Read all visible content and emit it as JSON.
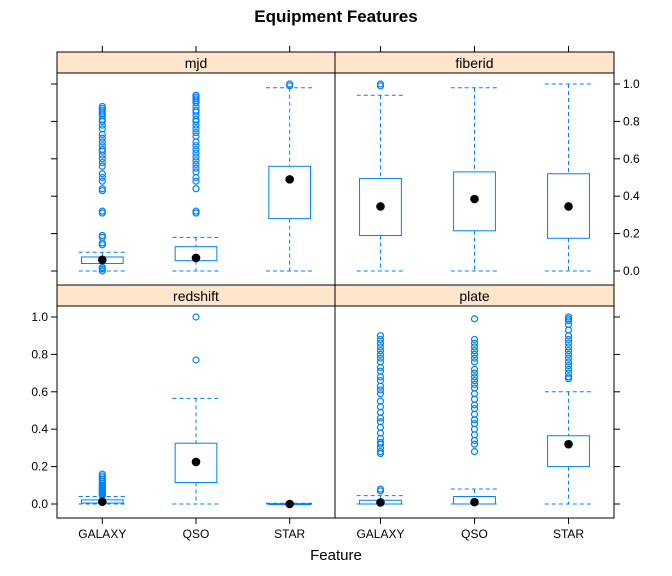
{
  "chart_data": {
    "type": "boxplot",
    "title": "Equipment Features",
    "xlabel": "Feature",
    "categories": [
      "GALAXY",
      "QSO",
      "STAR"
    ],
    "ylim": [
      0,
      1
    ],
    "yticks": [
      "0.0",
      "0.2",
      "0.4",
      "0.6",
      "0.8",
      "1.0"
    ],
    "yticks_values": [
      0,
      0.2,
      0.4,
      0.6,
      0.8,
      1.0
    ],
    "colors": {
      "box": "#0080ff",
      "median": "#000000",
      "strip": "#ffe5cc"
    },
    "panels": [
      {
        "name": "mjd",
        "boxes": [
          {
            "category": "GALAXY",
            "lower_whisker": 0.0,
            "q1": 0.04,
            "median": 0.06,
            "q3": 0.075,
            "upper_whisker": 0.1,
            "outliers": [
              0.88,
              0.87,
              0.86,
              0.85,
              0.84,
              0.83,
              0.81,
              0.8,
              0.78,
              0.76,
              0.73,
              0.71,
              0.69,
              0.67,
              0.65,
              0.64,
              0.62,
              0.6,
              0.58,
              0.56,
              0.52,
              0.5,
              0.48,
              0.44,
              0.43,
              0.32,
              0.31,
              0.19,
              0.18,
              0.15,
              0.14,
              0.02,
              0.01,
              0.0
            ]
          },
          {
            "category": "QSO",
            "lower_whisker": 0.0,
            "q1": 0.055,
            "median": 0.07,
            "q3": 0.13,
            "upper_whisker": 0.18,
            "outliers": [
              0.94,
              0.93,
              0.92,
              0.91,
              0.9,
              0.88,
              0.86,
              0.85,
              0.83,
              0.81,
              0.8,
              0.78,
              0.76,
              0.74,
              0.72,
              0.69,
              0.67,
              0.65,
              0.63,
              0.61,
              0.59,
              0.57,
              0.55,
              0.53,
              0.5,
              0.48,
              0.44,
              0.32,
              0.31
            ]
          },
          {
            "category": "STAR",
            "lower_whisker": 0.0,
            "q1": 0.28,
            "median": 0.49,
            "q3": 0.56,
            "upper_whisker": 0.98,
            "outliers": [
              1.0,
              0.99
            ]
          }
        ]
      },
      {
        "name": "fiberid",
        "boxes": [
          {
            "category": "GALAXY",
            "lower_whisker": 0.0,
            "q1": 0.19,
            "median": 0.345,
            "q3": 0.495,
            "upper_whisker": 0.94,
            "outliers": [
              1.0,
              0.99
            ]
          },
          {
            "category": "QSO",
            "lower_whisker": 0.0,
            "q1": 0.215,
            "median": 0.385,
            "q3": 0.53,
            "upper_whisker": 0.98,
            "outliers": []
          },
          {
            "category": "STAR",
            "lower_whisker": 0.0,
            "q1": 0.175,
            "median": 0.345,
            "q3": 0.52,
            "upper_whisker": 1.0,
            "outliers": []
          }
        ]
      },
      {
        "name": "redshift",
        "boxes": [
          {
            "category": "GALAXY",
            "lower_whisker": 0.0,
            "q1": 0.005,
            "median": 0.012,
            "q3": 0.022,
            "upper_whisker": 0.04,
            "outliers": [
              0.16,
              0.15,
              0.14,
              0.13,
              0.12,
              0.11,
              0.1,
              0.095,
              0.09,
              0.085,
              0.08,
              0.075,
              0.07,
              0.065,
              0.06,
              0.055,
              0.05,
              0.045
            ]
          },
          {
            "category": "QSO",
            "lower_whisker": 0.0,
            "q1": 0.115,
            "median": 0.225,
            "q3": 0.325,
            "upper_whisker": 0.565,
            "outliers": [
              1.0,
              0.77
            ]
          },
          {
            "category": "STAR",
            "lower_whisker": 0.0,
            "q1": 0.0,
            "median": 0.0,
            "q3": 0.002,
            "upper_whisker": 0.004,
            "outliers": []
          }
        ]
      },
      {
        "name": "plate",
        "boxes": [
          {
            "category": "GALAXY",
            "lower_whisker": 0.0,
            "q1": 0.0,
            "median": 0.008,
            "q3": 0.02,
            "upper_whisker": 0.045,
            "outliers": [
              0.9,
              0.88,
              0.86,
              0.84,
              0.82,
              0.8,
              0.78,
              0.76,
              0.73,
              0.71,
              0.68,
              0.66,
              0.63,
              0.61,
              0.59,
              0.55,
              0.52,
              0.49,
              0.46,
              0.44,
              0.41,
              0.38,
              0.35,
              0.33,
              0.32,
              0.3,
              0.28,
              0.27,
              0.08,
              0.07
            ]
          },
          {
            "category": "QSO",
            "lower_whisker": 0.0,
            "q1": 0.0,
            "median": 0.01,
            "q3": 0.04,
            "upper_whisker": 0.08,
            "outliers": [
              0.99,
              0.88,
              0.86,
              0.84,
              0.82,
              0.8,
              0.78,
              0.76,
              0.72,
              0.7,
              0.68,
              0.66,
              0.64,
              0.62,
              0.59,
              0.56,
              0.53,
              0.51,
              0.48,
              0.45,
              0.43,
              0.4,
              0.37,
              0.34,
              0.32,
              0.28
            ]
          },
          {
            "category": "STAR",
            "lower_whisker": 0.0,
            "q1": 0.2,
            "median": 0.32,
            "q3": 0.365,
            "upper_whisker": 0.6,
            "outliers": [
              1.0,
              0.99,
              0.98,
              0.96,
              0.93,
              0.9,
              0.88,
              0.86,
              0.84,
              0.82,
              0.8,
              0.78,
              0.76,
              0.74,
              0.72,
              0.7,
              0.68,
              0.67
            ]
          }
        ]
      }
    ]
  }
}
